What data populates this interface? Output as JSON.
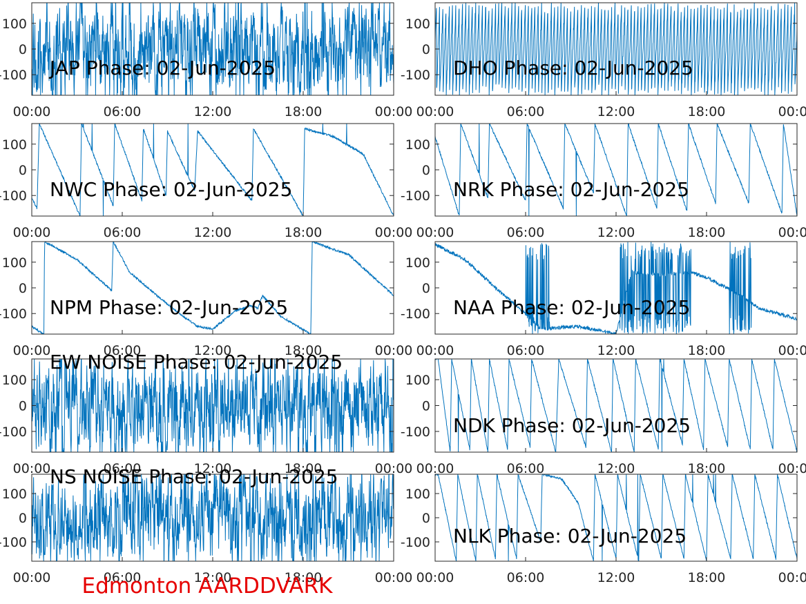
{
  "figure": {
    "footer_label": "Edmonton AARDDVARK",
    "footer_color": "#e60000",
    "trace_color": "#0072bd",
    "axis_color": "#262626"
  },
  "chart_data": [
    {
      "type": "line",
      "title": "JAP Phase: 02-Jun-2025",
      "station": "JAP",
      "xlim": [
        "00:00",
        "24:00"
      ],
      "ylim": [
        -180,
        180
      ],
      "xticklabels": [
        "00:00",
        "06:00",
        "12:00",
        "18:00",
        "00:00"
      ],
      "yticks": [
        -100,
        0,
        100
      ],
      "yticklabels": [
        "-100",
        "0",
        "100"
      ],
      "grid": false,
      "series": [
        {
          "pattern": "noise",
          "points": [
            [
              0,
              0
            ],
            [
              24,
              0
            ]
          ]
        }
      ]
    },
    {
      "type": "line",
      "title": "DHO Phase: 02-Jun-2025",
      "station": "DHO",
      "xlim": [
        "00:00",
        "24:00"
      ],
      "ylim": [
        -180,
        180
      ],
      "xticklabels": [
        "00:00",
        "06:00",
        "12:00",
        "18:00",
        "00:00"
      ],
      "yticks": [
        -100,
        0,
        100
      ],
      "yticklabels": [
        "-100",
        "0",
        "100"
      ],
      "grid": false,
      "series": [
        {
          "pattern": "rapid-wrap",
          "points": [
            [
              0,
              0
            ],
            [
              24,
              0
            ]
          ]
        }
      ]
    },
    {
      "type": "line",
      "title": "NWC Phase: 02-Jun-2025",
      "station": "NWC",
      "xlim": [
        "00:00",
        "24:00"
      ],
      "ylim": [
        -180,
        180
      ],
      "xticklabels": [
        "00:00",
        "06:00",
        "12:00",
        "18:00",
        "00:00"
      ],
      "yticks": [
        -100,
        0,
        100
      ],
      "yticklabels": [
        "-100",
        "0",
        "100"
      ],
      "grid": false,
      "series": [
        {
          "pattern": "sawtooth",
          "points": [
            [
              0,
              -110
            ],
            [
              0.35,
              -150
            ],
            [
              0.5,
              180
            ],
            [
              3.2,
              -180
            ],
            [
              3.3,
              180
            ],
            [
              5.4,
              -140
            ],
            [
              5.5,
              180
            ],
            [
              7.3,
              -120
            ],
            [
              7.4,
              160
            ],
            [
              8.9,
              -100
            ],
            [
              9.0,
              150
            ],
            [
              10.8,
              -80
            ],
            [
              11.0,
              150
            ],
            [
              14.6,
              -120
            ],
            [
              14.7,
              160
            ],
            [
              18.0,
              -180
            ],
            [
              18.1,
              160
            ],
            [
              20.0,
              130
            ],
            [
              22.0,
              60
            ],
            [
              24,
              -180
            ]
          ]
        }
      ]
    },
    {
      "type": "line",
      "title": "NRK Phase: 02-Jun-2025",
      "station": "NRK",
      "xlim": [
        "00:00",
        "24:00"
      ],
      "ylim": [
        -180,
        180
      ],
      "xticklabels": [
        "00:00",
        "06:00",
        "12:00",
        "18:00",
        "00:00"
      ],
      "yticks": [
        -100,
        0,
        100
      ],
      "yticklabels": [
        "-100",
        "0",
        "100"
      ],
      "grid": false,
      "series": [
        {
          "pattern": "sawtooth",
          "points": [
            [
              0,
              130
            ],
            [
              1.6,
              -180
            ],
            [
              1.7,
              180
            ],
            [
              3.5,
              -110
            ],
            [
              3.6,
              180
            ],
            [
              6.0,
              -120
            ],
            [
              6.1,
              180
            ],
            [
              8.5,
              -150
            ],
            [
              8.6,
              180
            ],
            [
              10.5,
              -90
            ],
            [
              10.6,
              180
            ],
            [
              12.7,
              -180
            ],
            [
              12.8,
              180
            ],
            [
              14.7,
              -150
            ],
            [
              14.8,
              180
            ],
            [
              16.7,
              -160
            ],
            [
              16.8,
              180
            ],
            [
              18.6,
              -130
            ],
            [
              18.7,
              180
            ],
            [
              20.8,
              -130
            ],
            [
              20.9,
              180
            ],
            [
              23.0,
              -170
            ],
            [
              23.1,
              180
            ],
            [
              24,
              -180
            ]
          ]
        }
      ]
    },
    {
      "type": "line",
      "title": "NPM Phase: 02-Jun-2025",
      "station": "NPM",
      "xlim": [
        "00:00",
        "24:00"
      ],
      "ylim": [
        -180,
        180
      ],
      "xticklabels": [
        "00:00",
        "06:00",
        "12:00",
        "18:00",
        "00:00"
      ],
      "yticks": [
        -100,
        0,
        100
      ],
      "yticklabels": [
        "-100",
        "0",
        "100"
      ],
      "grid": false,
      "series": [
        {
          "pattern": "smooth",
          "points": [
            [
              0,
              -150
            ],
            [
              0.8,
              -180
            ],
            [
              0.85,
              180
            ],
            [
              3.0,
              110
            ],
            [
              5.3,
              -10
            ],
            [
              5.4,
              180
            ],
            [
              6.5,
              60
            ],
            [
              8.5,
              -40
            ],
            [
              10.0,
              -110
            ],
            [
              11.0,
              -150
            ],
            [
              12.0,
              -160
            ],
            [
              13.5,
              -90
            ],
            [
              14.5,
              -70
            ],
            [
              15.0,
              -80
            ],
            [
              15.3,
              -30
            ],
            [
              16.5,
              -110
            ],
            [
              18.5,
              -180
            ],
            [
              18.6,
              180
            ],
            [
              20.0,
              150
            ],
            [
              21.0,
              130
            ],
            [
              24,
              -30
            ]
          ]
        }
      ]
    },
    {
      "type": "line",
      "title": "NAA Phase: 02-Jun-2025",
      "station": "NAA",
      "xlim": [
        "00:00",
        "24:00"
      ],
      "ylim": [
        -180,
        180
      ],
      "xticklabels": [
        "00:00",
        "06:00",
        "12:00",
        "18:00",
        "00:00"
      ],
      "yticks": [
        -100,
        0,
        100
      ],
      "yticklabels": [
        "-100",
        "0",
        "100"
      ],
      "grid": false,
      "series": [
        {
          "pattern": "mixed",
          "points": [
            [
              0,
              170
            ],
            [
              2.0,
              110
            ],
            [
              4.0,
              0
            ],
            [
              6.0,
              -100
            ],
            [
              7.0,
              -160
            ],
            [
              9.5,
              -150
            ],
            [
              12.0,
              -180
            ],
            [
              13.0,
              60
            ],
            [
              15.0,
              50
            ],
            [
              17.0,
              60
            ],
            [
              18.0,
              40
            ],
            [
              20.0,
              -20
            ],
            [
              21.5,
              -80
            ],
            [
              24,
              -120
            ]
          ]
        }
      ]
    },
    {
      "type": "line",
      "title": "EW NOISE Phase: 02-Jun-2025",
      "station": "EW NOISE",
      "xlim": [
        "00:00",
        "24:00"
      ],
      "ylim": [
        -180,
        180
      ],
      "xticklabels": [
        "00:00",
        "06:00",
        "12:00",
        "18:00",
        "00:00"
      ],
      "yticks": [
        -100,
        0,
        100
      ],
      "yticklabels": [
        "-100",
        "0",
        "100"
      ],
      "grid": false,
      "series": [
        {
          "pattern": "noise",
          "points": [
            [
              0,
              0
            ],
            [
              24,
              0
            ]
          ]
        }
      ]
    },
    {
      "type": "line",
      "title": "NDK Phase: 02-Jun-2025",
      "station": "NDK",
      "xlim": [
        "00:00",
        "24:00"
      ],
      "ylim": [
        -180,
        180
      ],
      "xticklabels": [
        "00:00",
        "06:00",
        "12:00",
        "18:00",
        "00:00"
      ],
      "yticks": [
        -100,
        0,
        100
      ],
      "yticklabels": [
        "-100",
        "0",
        "100"
      ],
      "grid": false,
      "series": [
        {
          "pattern": "sawtooth",
          "points": [
            [
              0.2,
              180
            ],
            [
              1.0,
              -180
            ],
            [
              1.1,
              180
            ],
            [
              2.3,
              -170
            ],
            [
              2.4,
              180
            ],
            [
              3.5,
              -180
            ],
            [
              3.6,
              180
            ],
            [
              4.8,
              -170
            ],
            [
              4.9,
              180
            ],
            [
              6.3,
              -160
            ],
            [
              6.4,
              180
            ],
            [
              8.0,
              -180
            ],
            [
              8.2,
              180
            ],
            [
              10.0,
              -160
            ],
            [
              10.1,
              180
            ],
            [
              11.7,
              -180
            ],
            [
              11.8,
              180
            ],
            [
              13.2,
              -180
            ],
            [
              13.3,
              180
            ],
            [
              14.8,
              -170
            ],
            [
              14.9,
              180
            ],
            [
              16.4,
              -150
            ],
            [
              16.5,
              180
            ],
            [
              17.8,
              -170
            ],
            [
              17.9,
              180
            ],
            [
              19.4,
              -160
            ],
            [
              19.5,
              180
            ],
            [
              20.9,
              -170
            ],
            [
              21.0,
              180
            ],
            [
              22.4,
              -170
            ],
            [
              22.5,
              180
            ],
            [
              24,
              -180
            ]
          ]
        }
      ]
    },
    {
      "type": "line",
      "title": "NS NOISE Phase: 02-Jun-2025",
      "station": "NS NOISE",
      "xlim": [
        "00:00",
        "24:00"
      ],
      "ylim": [
        -180,
        180
      ],
      "xticklabels": [
        "00:00",
        "06:00",
        "12:00",
        "18:00",
        "00:00"
      ],
      "yticks": [
        -100,
        0,
        100
      ],
      "yticklabels": [
        "-100",
        "0",
        "100"
      ],
      "grid": false,
      "series": [
        {
          "pattern": "noise",
          "points": [
            [
              0,
              0
            ],
            [
              24,
              0
            ]
          ]
        }
      ]
    },
    {
      "type": "line",
      "title": "NLK Phase: 02-Jun-2025",
      "station": "NLK",
      "xlim": [
        "00:00",
        "24:00"
      ],
      "ylim": [
        -180,
        180
      ],
      "xticklabels": [
        "00:00",
        "06:00",
        "12:00",
        "18:00",
        "00:00"
      ],
      "yticks": [
        -100,
        0,
        100
      ],
      "yticklabels": [
        "-100",
        "0",
        "100"
      ],
      "grid": false,
      "series": [
        {
          "pattern": "sawtooth",
          "points": [
            [
              0.2,
              180
            ],
            [
              1.4,
              -180
            ],
            [
              1.5,
              180
            ],
            [
              2.7,
              -180
            ],
            [
              2.8,
              180
            ],
            [
              4.0,
              -170
            ],
            [
              4.1,
              180
            ],
            [
              5.4,
              -170
            ],
            [
              5.5,
              180
            ],
            [
              7.0,
              -100
            ],
            [
              7.1,
              180
            ],
            [
              8.4,
              160
            ],
            [
              9.5,
              60
            ],
            [
              10.5,
              -180
            ],
            [
              10.6,
              180
            ],
            [
              12.0,
              -170
            ],
            [
              12.1,
              180
            ],
            [
              13.5,
              -180
            ],
            [
              13.6,
              180
            ],
            [
              15.0,
              -170
            ],
            [
              15.1,
              180
            ],
            [
              16.5,
              -170
            ],
            [
              16.6,
              180
            ],
            [
              18.0,
              -180
            ],
            [
              18.1,
              180
            ],
            [
              19.6,
              -170
            ],
            [
              19.7,
              180
            ],
            [
              21.1,
              -170
            ],
            [
              21.2,
              180
            ],
            [
              22.6,
              -170
            ],
            [
              22.7,
              180
            ],
            [
              24,
              -170
            ]
          ]
        }
      ]
    }
  ]
}
